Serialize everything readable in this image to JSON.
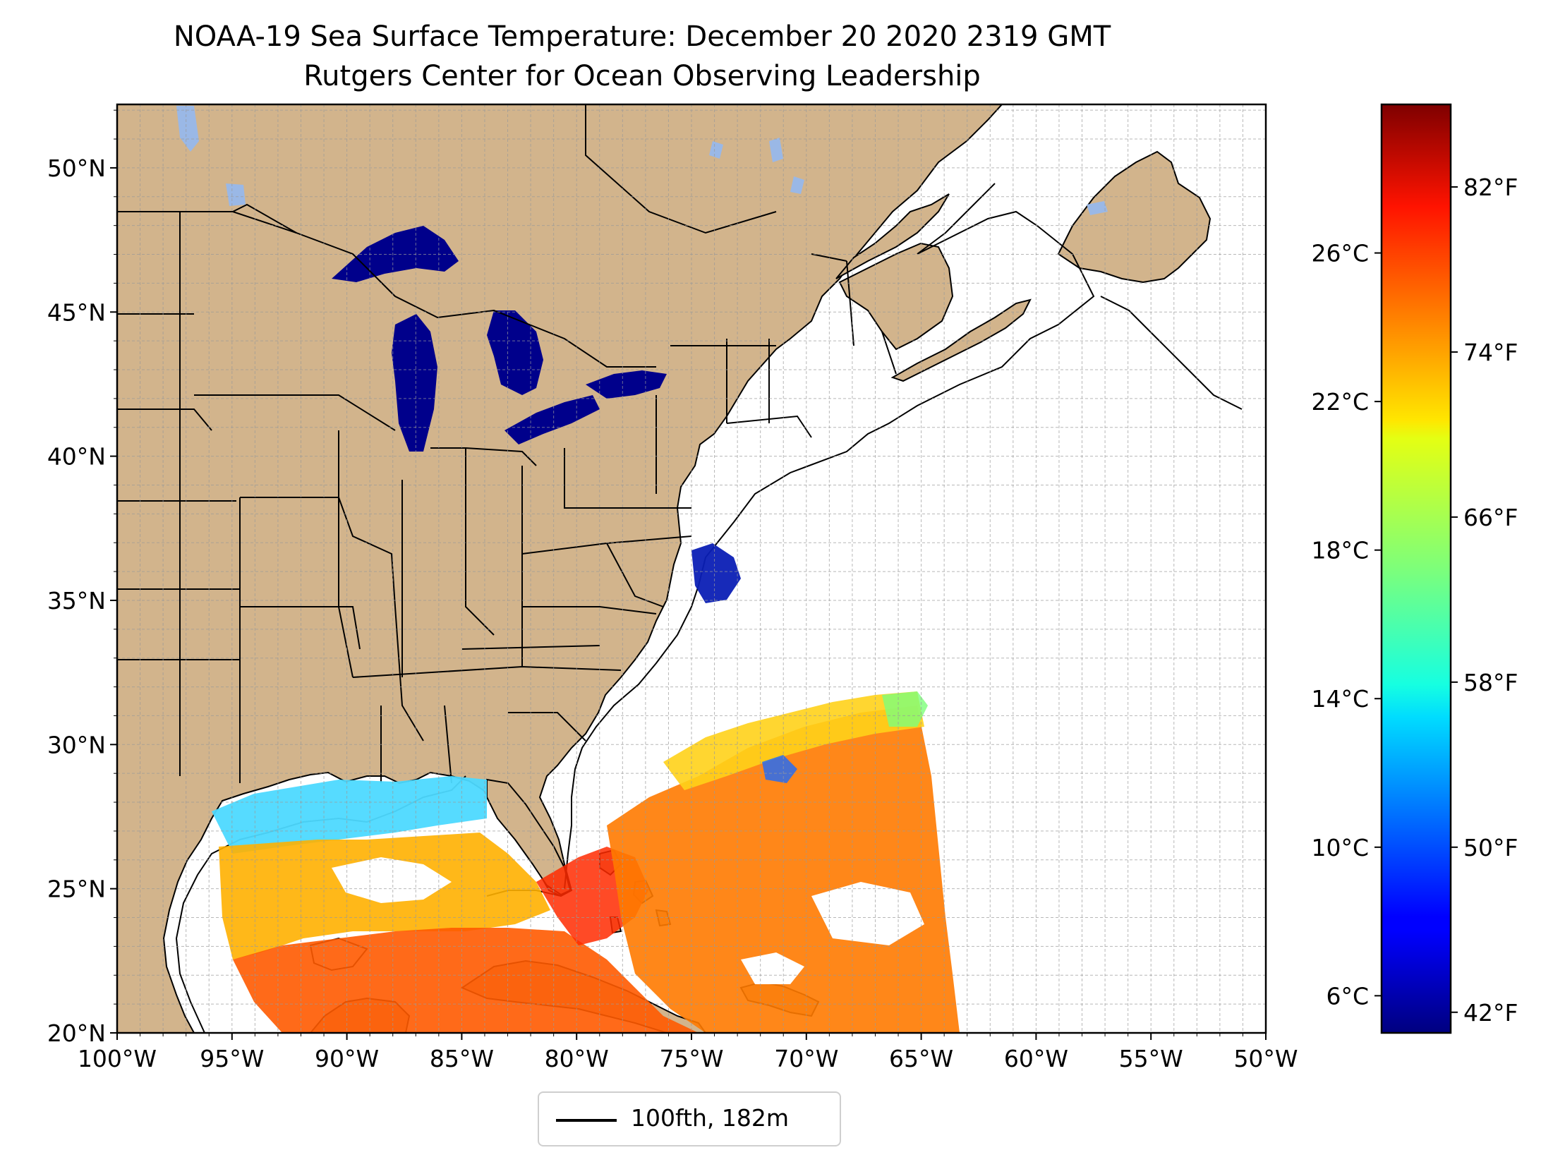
{
  "title": "NOAA-19 Sea Surface Temperature: December 20 2020 2319 GMT",
  "subtitle": "Rutgers Center for Ocean Observing Leadership",
  "map": {
    "lon_range": [
      -100,
      -50
    ],
    "lat_range": [
      20,
      52.2
    ],
    "lon_ticks": [
      {
        "value": -100,
        "label": "100°W"
      },
      {
        "value": -95,
        "label": "95°W"
      },
      {
        "value": -90,
        "label": "90°W"
      },
      {
        "value": -85,
        "label": "85°W"
      },
      {
        "value": -80,
        "label": "80°W"
      },
      {
        "value": -75,
        "label": "75°W"
      },
      {
        "value": -70,
        "label": "70°W"
      },
      {
        "value": -65,
        "label": "65°W"
      },
      {
        "value": -60,
        "label": "60°W"
      },
      {
        "value": -55,
        "label": "55°W"
      },
      {
        "value": -50,
        "label": "50°W"
      }
    ],
    "lat_ticks": [
      {
        "value": 20,
        "label": "20°N"
      },
      {
        "value": 25,
        "label": "25°N"
      },
      {
        "value": 30,
        "label": "30°N"
      },
      {
        "value": 35,
        "label": "35°N"
      },
      {
        "value": 40,
        "label": "40°N"
      },
      {
        "value": 45,
        "label": "45°N"
      },
      {
        "value": 50,
        "label": "50°N"
      }
    ],
    "land_color": "#d2b48c",
    "lake_color": "#9ab8e6"
  },
  "colorbar": {
    "colormap": "jet",
    "celsius_range": [
      5,
      30
    ],
    "celsius_ticks": [
      {
        "value": 6,
        "label": "6°C"
      },
      {
        "value": 10,
        "label": "10°C"
      },
      {
        "value": 14,
        "label": "14°C"
      },
      {
        "value": 18,
        "label": "18°C"
      },
      {
        "value": 22,
        "label": "22°C"
      },
      {
        "value": 26,
        "label": "26°C"
      }
    ],
    "fahrenheit_ticks": [
      {
        "value": 42,
        "label": "42°F"
      },
      {
        "value": 50,
        "label": "50°F"
      },
      {
        "value": 58,
        "label": "58°F"
      },
      {
        "value": 66,
        "label": "66°F"
      },
      {
        "value": 74,
        "label": "74°F"
      },
      {
        "value": 82,
        "label": "82°F"
      }
    ]
  },
  "legend": {
    "label": "100fth, 182m",
    "line_color": "#000000"
  }
}
